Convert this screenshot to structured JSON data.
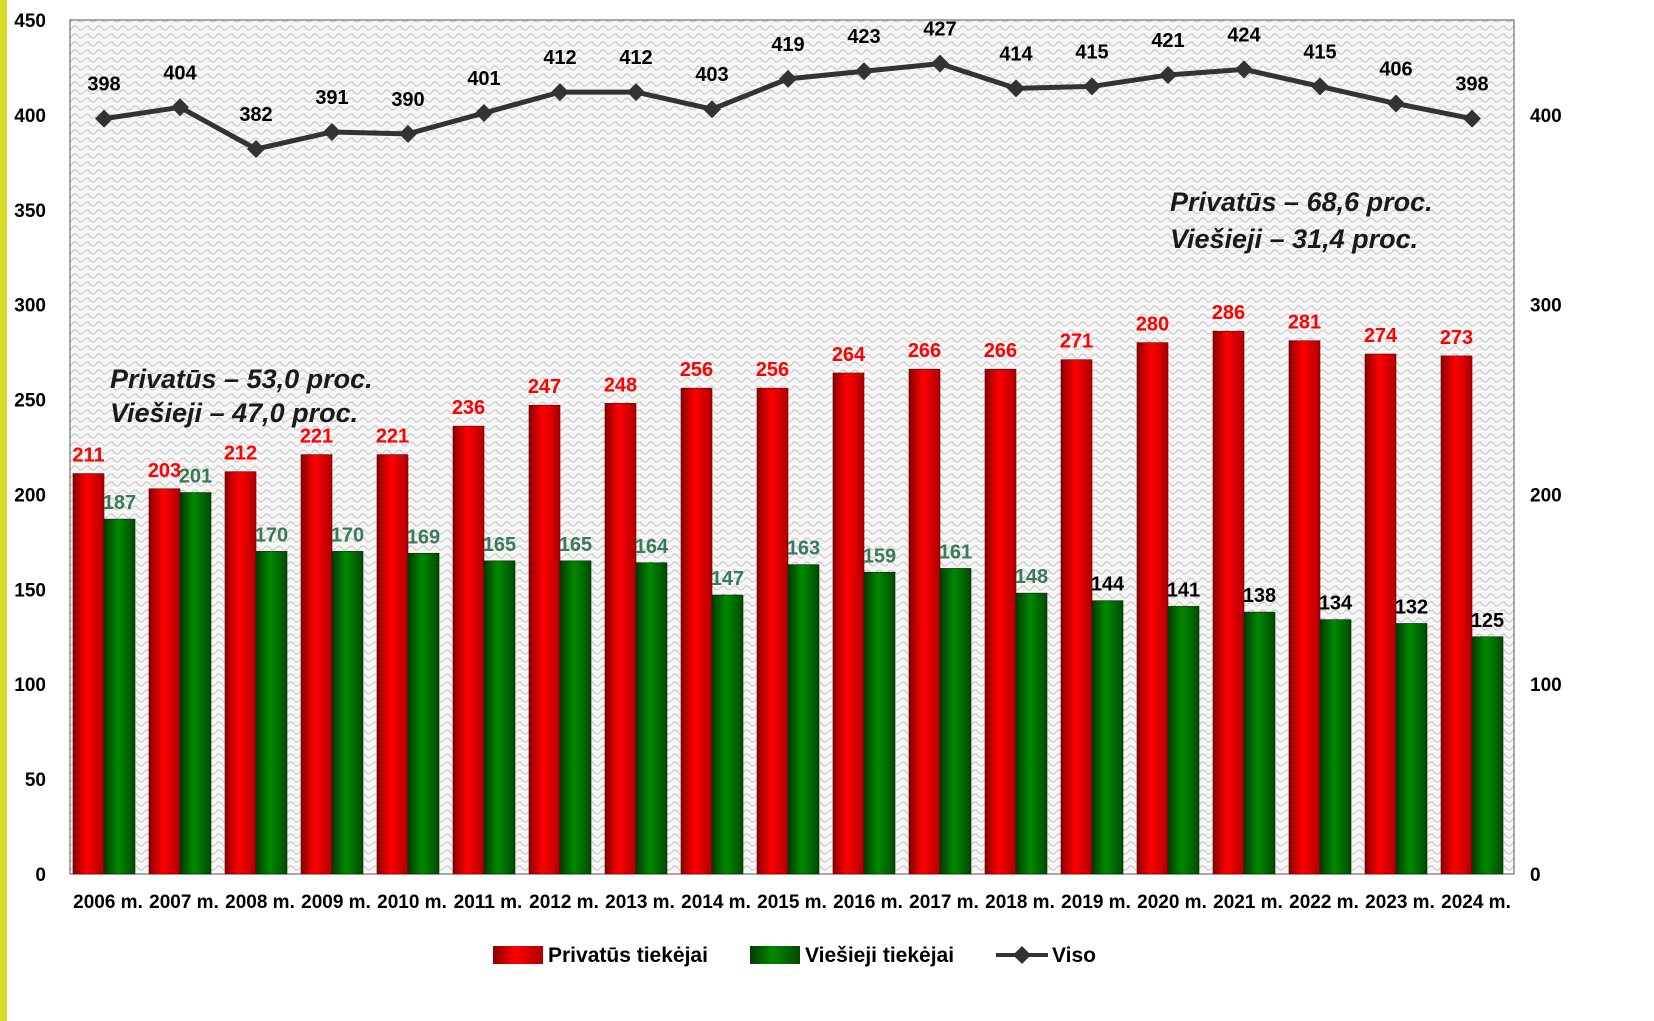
{
  "chart_data": {
    "type": "bar",
    "categories": [
      "2006 m.",
      "2007 m.",
      "2008 m.",
      "2009 m.",
      "2010 m.",
      "2011 m.",
      "2012 m.",
      "2013 m.",
      "2014 m.",
      "2015 m.",
      "2016 m.",
      "2017 m.",
      "2018 m.",
      "2019 m.",
      "2020 m.",
      "2021 m.",
      "2022 m.",
      "2023 m.",
      "2024 m."
    ],
    "series": [
      {
        "name": "Privatūs tiekėjai",
        "type": "bar",
        "color": "#ff0000",
        "values": [
          211,
          203,
          212,
          221,
          221,
          236,
          247,
          248,
          256,
          256,
          264,
          266,
          266,
          271,
          280,
          286,
          281,
          274,
          273
        ]
      },
      {
        "name": "Viešieji tiekėjai",
        "type": "bar",
        "color": "#008000",
        "values": [
          187,
          201,
          170,
          170,
          169,
          165,
          165,
          164,
          147,
          163,
          159,
          161,
          148,
          144,
          141,
          138,
          134,
          132,
          125
        ]
      },
      {
        "name": "Viso",
        "type": "line",
        "color": "#333333",
        "values": [
          398,
          404,
          382,
          391,
          390,
          401,
          412,
          412,
          403,
          419,
          423,
          427,
          414,
          415,
          421,
          424,
          415,
          406,
          398
        ]
      }
    ],
    "ylim": [
      0,
      450
    ],
    "yticks": [
      "0",
      "50",
      "100",
      "150",
      "200",
      "250",
      "300",
      "350",
      "400",
      "450"
    ],
    "ylim_right": [
      0,
      450
    ],
    "yticks_right": [
      "0",
      "100",
      "200",
      "300",
      "400"
    ],
    "legend_position": "bottom",
    "grid": false,
    "annotations": [
      {
        "line1": "Privatūs – 53,0 proc.",
        "line2": "Viešieji – 47,0 proc."
      },
      {
        "line1": "Privatūs – 68,6 proc.",
        "line2": "Viešieji –  31,4 proc."
      }
    ]
  },
  "colors": {
    "private_label": "#ff0000",
    "public_label_early": "#3a7a5a",
    "public_label_late": "#000000"
  }
}
